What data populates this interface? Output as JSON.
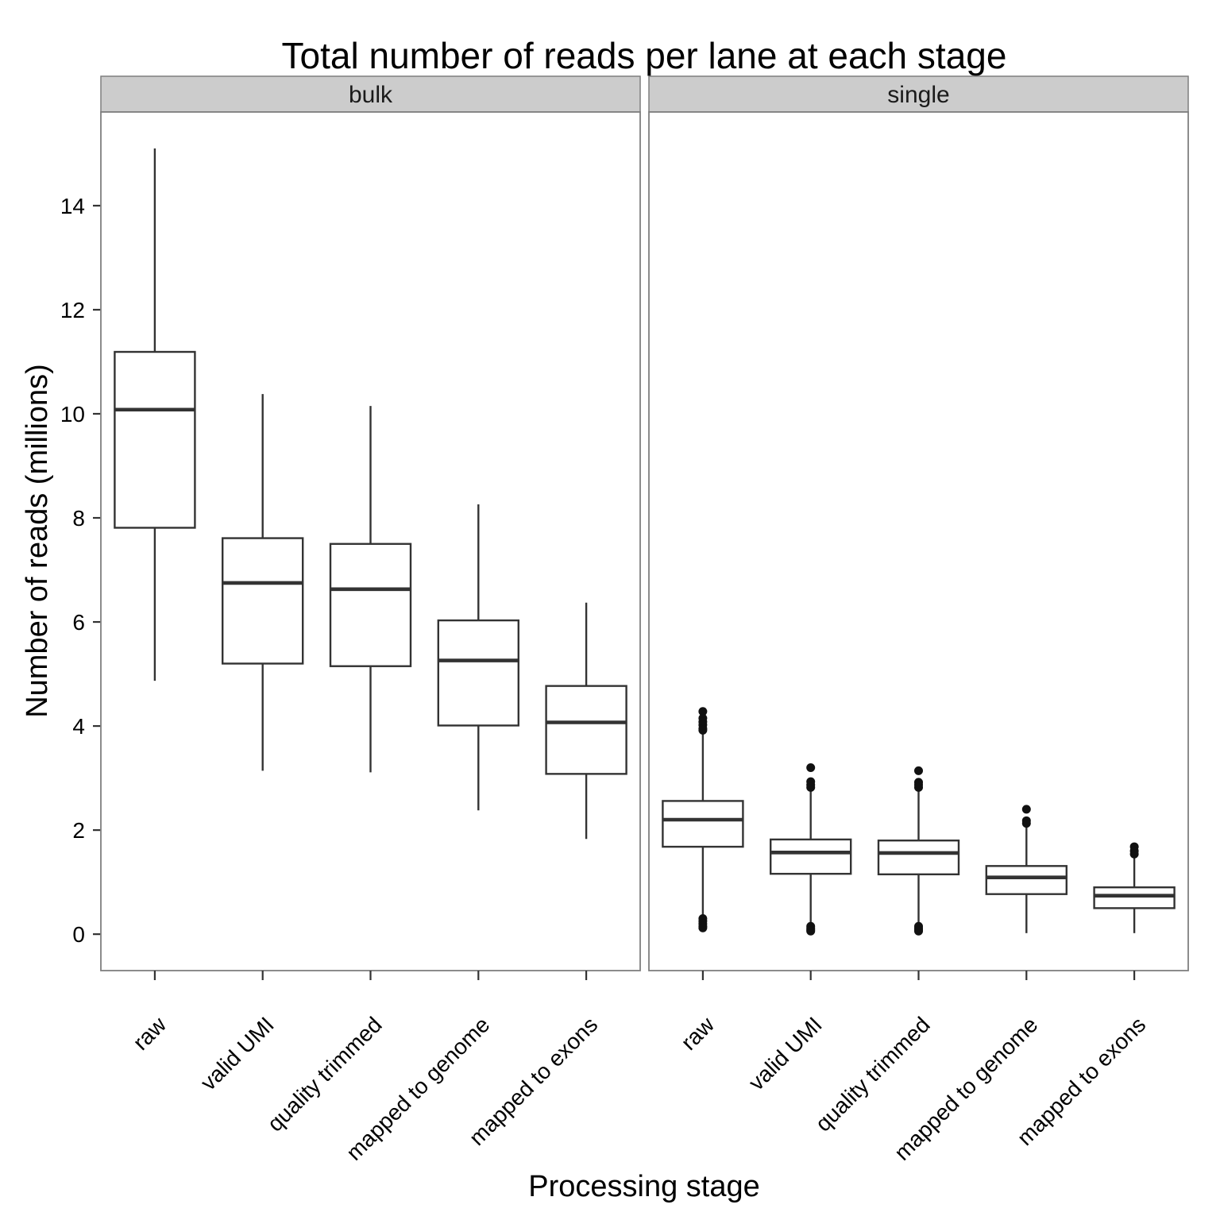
{
  "chart_data": {
    "type": "boxplot",
    "title": "Total number of reads per lane at each stage",
    "xlabel": "Processing stage",
    "ylabel": "Number of reads (millions)",
    "ylim": [
      -0.7,
      15.8
    ],
    "yticks": [
      0,
      2,
      4,
      6,
      8,
      10,
      12,
      14
    ],
    "categories": [
      "raw",
      "valid UMI",
      "quality trimmed",
      "mapped to genome",
      "mapped to exons"
    ],
    "grid": false,
    "colors": {
      "box_line": "#333333",
      "strip_bg": "#cccccc",
      "panel_border": "#7f7f7f"
    },
    "panels": [
      {
        "name": "bulk",
        "boxes": [
          {
            "category": "raw",
            "min": 4.87,
            "q1": 7.81,
            "median": 10.08,
            "q3": 11.19,
            "max": 15.1,
            "outliers": []
          },
          {
            "category": "valid UMI",
            "min": 3.14,
            "q1": 5.2,
            "median": 6.75,
            "q3": 7.61,
            "max": 10.38,
            "outliers": []
          },
          {
            "category": "quality trimmed",
            "min": 3.11,
            "q1": 5.15,
            "median": 6.63,
            "q3": 7.5,
            "max": 10.15,
            "outliers": []
          },
          {
            "category": "mapped to genome",
            "min": 2.38,
            "q1": 4.01,
            "median": 5.26,
            "q3": 6.03,
            "max": 8.26,
            "outliers": []
          },
          {
            "category": "mapped to exons",
            "min": 1.83,
            "q1": 3.08,
            "median": 4.07,
            "q3": 4.77,
            "max": 6.37,
            "outliers": []
          }
        ]
      },
      {
        "name": "single",
        "boxes": [
          {
            "category": "raw",
            "min": 0.35,
            "q1": 1.68,
            "median": 2.2,
            "q3": 2.56,
            "max": 3.88,
            "outliers": [
              4.28,
              4.15,
              4.08,
              4.02,
              3.95,
              3.92,
              0.3,
              0.25,
              0.2,
              0.15,
              0.12
            ]
          },
          {
            "category": "valid UMI",
            "min": 0.18,
            "q1": 1.16,
            "median": 1.57,
            "q3": 1.82,
            "max": 2.78,
            "outliers": [
              3.2,
              2.93,
              2.87,
              2.82,
              0.15,
              0.11,
              0.08,
              0.06
            ]
          },
          {
            "category": "quality trimmed",
            "min": 0.18,
            "q1": 1.15,
            "median": 1.56,
            "q3": 1.8,
            "max": 2.77,
            "outliers": [
              3.14,
              2.92,
              2.87,
              2.82,
              0.15,
              0.11,
              0.08,
              0.06
            ]
          },
          {
            "category": "mapped to genome",
            "min": 0.02,
            "q1": 0.77,
            "median": 1.09,
            "q3": 1.31,
            "max": 2.08,
            "outliers": [
              2.4,
              2.18,
              2.13
            ]
          },
          {
            "category": "mapped to exons",
            "min": 0.02,
            "q1": 0.5,
            "median": 0.74,
            "q3": 0.9,
            "max": 1.48,
            "outliers": [
              1.68,
              1.6,
              1.54
            ]
          }
        ]
      }
    ]
  }
}
